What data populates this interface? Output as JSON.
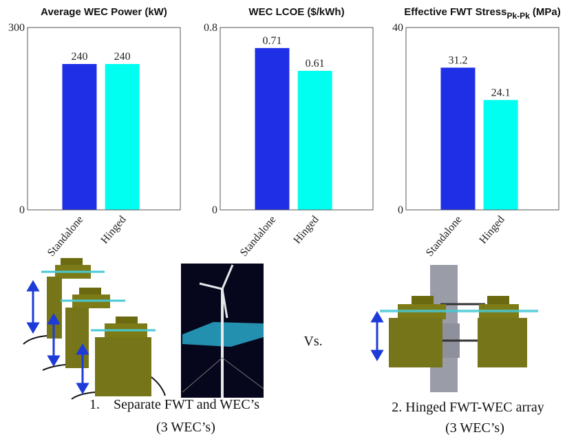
{
  "chart_data": [
    {
      "type": "bar",
      "title": "Average WEC Power (kW)",
      "categories": [
        "Standalone",
        "Hinged"
      ],
      "values": [
        240,
        240
      ],
      "colors": [
        "#1f2fe6",
        "#00fff0"
      ],
      "ylim": [
        0,
        300
      ],
      "yticks": [
        0,
        300
      ]
    },
    {
      "type": "bar",
      "title": "WEC LCOE ($/kWh)",
      "categories": [
        "Standalone",
        "Hinged"
      ],
      "values": [
        0.71,
        0.61
      ],
      "colors": [
        "#1f2fe6",
        "#00fff0"
      ],
      "ylim": [
        0,
        0.8
      ],
      "yticks": [
        0,
        0.8
      ]
    },
    {
      "type": "bar",
      "title": "Effective FWT Stress",
      "title_subscript": "Pk-Pk",
      "title_suffix": "(MPa)",
      "categories": [
        "Standalone",
        "Hinged"
      ],
      "values": [
        31.2,
        24.1
      ],
      "colors": [
        "#1f2fe6",
        "#00fff0"
      ],
      "ylim": [
        0,
        40
      ],
      "yticks": [
        0,
        40
      ]
    }
  ],
  "captions": {
    "left": "1.    Separate FWT and WEC’s",
    "left_sub": "(3 WEC’s)",
    "versus": "Vs.",
    "right": "2. Hinged FWT-WEC array",
    "right_sub": "(3 WEC’s)"
  }
}
